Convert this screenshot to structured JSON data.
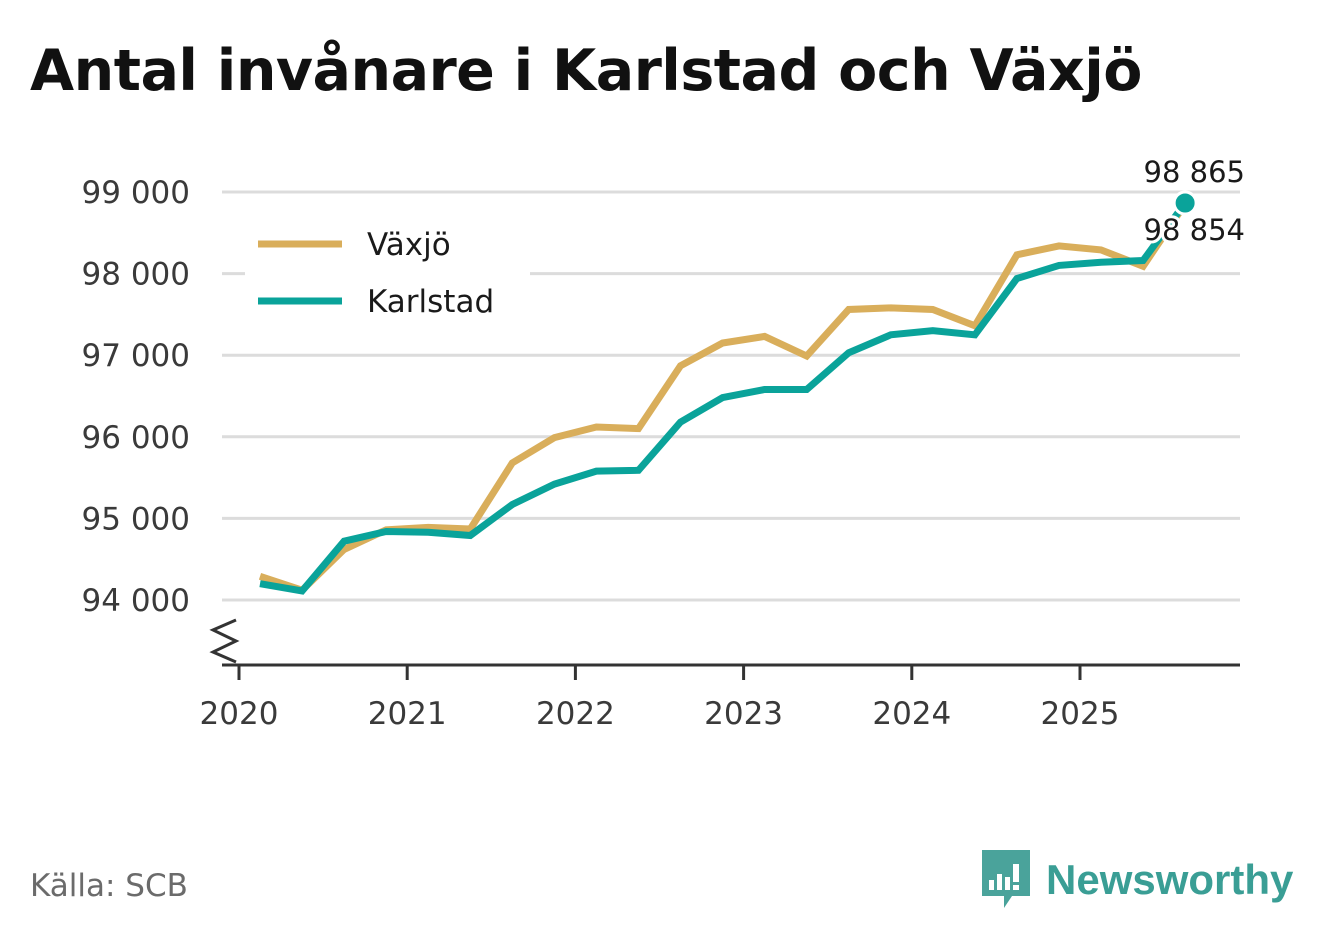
{
  "title": "Antal invånare i Karlstad och Växjö",
  "source": "Källa: SCB",
  "brand": {
    "name": "Newsworthy",
    "icon": "newsworthy-logo-icon",
    "color": "#3a9e95"
  },
  "chart_data": {
    "type": "line",
    "title": "Antal invånare i Karlstad och Växjö",
    "x_tick_labels": [
      "2020",
      "2021",
      "2022",
      "2023",
      "2024",
      "2025"
    ],
    "x_ticks": [
      2020,
      2021,
      2022,
      2023,
      2024,
      2025
    ],
    "xlim": [
      2020,
      2026
    ],
    "y_tick_labels": [
      "94 000",
      "95 000",
      "96 000",
      "97 000",
      "98 000",
      "99 000"
    ],
    "y_ticks": [
      94000,
      95000,
      96000,
      97000,
      98000,
      99000
    ],
    "ylim": [
      93200,
      99500
    ],
    "grid": true,
    "broken_y_axis": true,
    "legend_position": "top-left",
    "x": [
      2020.125,
      2020.375,
      2020.625,
      2020.875,
      2021.125,
      2021.375,
      2021.625,
      2021.875,
      2022.125,
      2022.375,
      2022.625,
      2022.875,
      2023.125,
      2023.375,
      2023.625,
      2023.875,
      2024.125,
      2024.375,
      2024.625,
      2024.875,
      2025.125,
      2025.375,
      2025.625
    ],
    "series": [
      {
        "name": "Växjö",
        "color": "#d9ae5b",
        "values": [
          94290,
          94120,
          94620,
          94860,
          94890,
          94870,
          95680,
          95990,
          96120,
          96100,
          96870,
          97150,
          97230,
          96990,
          97560,
          97580,
          97560,
          97360,
          98230,
          98340,
          98290,
          98090,
          98854
        ],
        "last_label": "98 854"
      },
      {
        "name": "Karlstad",
        "color": "#0aa39a",
        "values": [
          94200,
          94110,
          94720,
          94840,
          94830,
          94790,
          95170,
          95420,
          95580,
          95590,
          96180,
          96480,
          96580,
          96580,
          97030,
          97250,
          97300,
          97250,
          97940,
          98100,
          98140,
          98160,
          98865
        ],
        "last_label": "98 865"
      }
    ]
  }
}
